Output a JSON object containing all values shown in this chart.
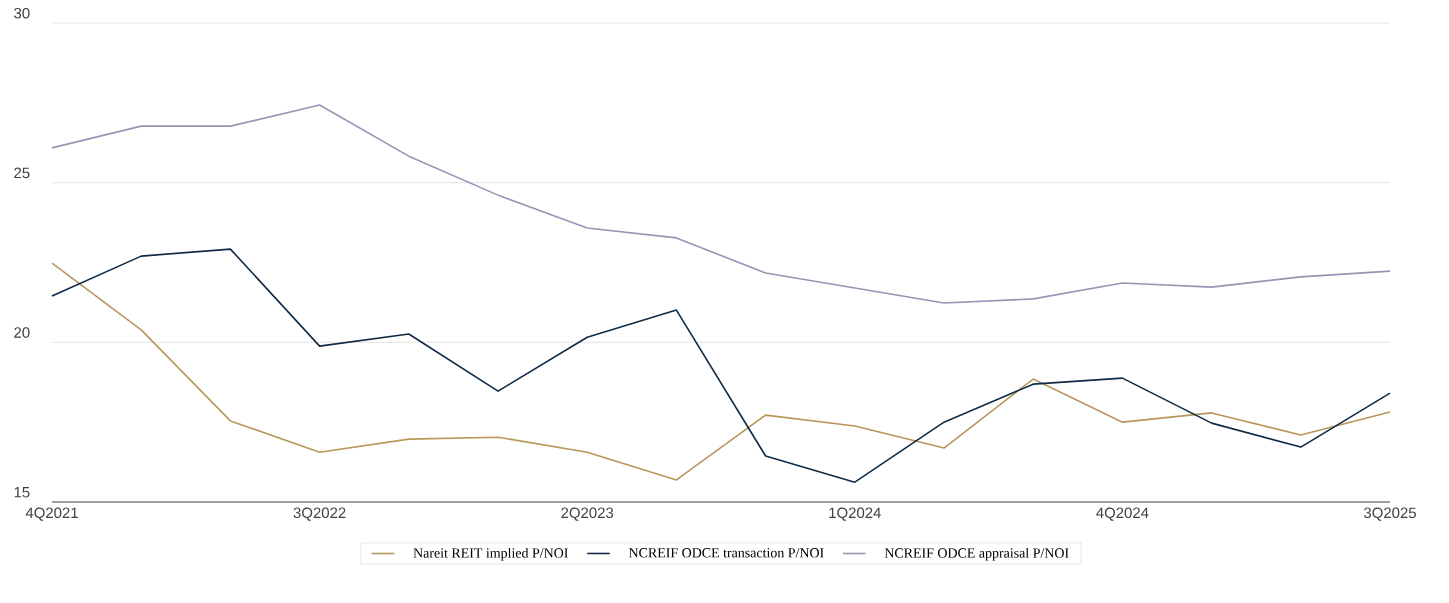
{
  "chart_data": {
    "type": "line",
    "categories": [
      "4Q2021",
      null,
      null,
      "3Q2022",
      null,
      null,
      "2Q2023",
      null,
      null,
      "1Q2024",
      null,
      null,
      "4Q2024",
      null,
      null,
      "3Q2025"
    ],
    "series": [
      {
        "name": "Nareit REIT implied P/NOI",
        "color": "#b8975a",
        "values": [
          22.48,
          20.39,
          17.54,
          16.56,
          16.97,
          17.03,
          16.56,
          15.69,
          17.72,
          17.38,
          16.69,
          18.85,
          17.5,
          17.79,
          17.1,
          17.82
        ]
      },
      {
        "name": "NCREIF ODCE transaction P/NOI",
        "color": "#0f2b46",
        "values": [
          21.45,
          22.7,
          22.92,
          19.88,
          20.26,
          18.47,
          20.16,
          21.01,
          16.44,
          15.62,
          17.5,
          18.69,
          18.88,
          17.47,
          16.72,
          18.41
        ]
      },
      {
        "name": "NCREIF ODCE appraisal P/NOI",
        "color": "#9b93b5",
        "values": [
          26.09,
          26.77,
          26.77,
          27.43,
          25.83,
          24.61,
          23.58,
          23.27,
          22.17,
          21.7,
          21.23,
          21.36,
          21.86,
          21.73,
          22.05,
          22.23
        ]
      }
    ],
    "ylim": [
      15,
      30
    ],
    "yticks": [
      15,
      20,
      25,
      30
    ],
    "grid": "y",
    "legend": "bottom",
    "marker": "none",
    "line_style": "solid"
  }
}
